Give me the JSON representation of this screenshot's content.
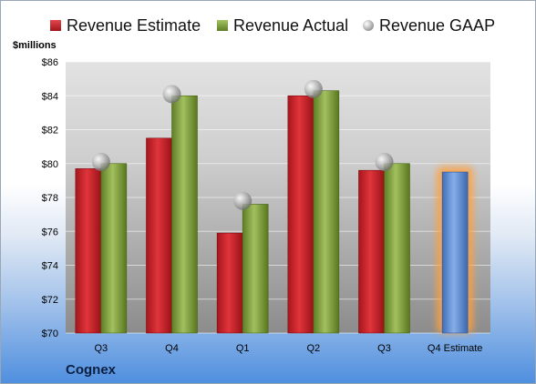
{
  "chart_data": {
    "type": "bar",
    "categories": [
      "Q3",
      "Q4",
      "Q1",
      "Q2",
      "Q3",
      "Q4 Estimate"
    ],
    "series": [
      {
        "name": "Revenue Estimate",
        "values": [
          79.7,
          81.5,
          75.9,
          84.0,
          79.6,
          null
        ],
        "color": "#c8232a"
      },
      {
        "name": "Revenue Actual",
        "values": [
          80.0,
          84.0,
          77.6,
          84.3,
          80.0,
          79.5
        ],
        "color": "#7a9a3a",
        "highlight_last_color": "#4f7fc8"
      },
      {
        "name": "Revenue GAAP",
        "values": [
          80.1,
          84.1,
          77.8,
          84.4,
          80.1,
          null
        ],
        "color": "#b0b0b0",
        "marker": "sphere"
      }
    ],
    "ylabel": "$millions",
    "ylim": [
      70,
      86
    ],
    "yticks": [
      "$70",
      "$72",
      "$74",
      "$76",
      "$78",
      "$80",
      "$82",
      "$84",
      "$86"
    ],
    "grid": true,
    "legend": "top",
    "company": "Cognex"
  },
  "legend": {
    "estimate": "Revenue Estimate",
    "actual": "Revenue Actual",
    "gaap": "Revenue GAAP"
  },
  "labels": {
    "unit": "$millions",
    "company": "Cognex"
  }
}
